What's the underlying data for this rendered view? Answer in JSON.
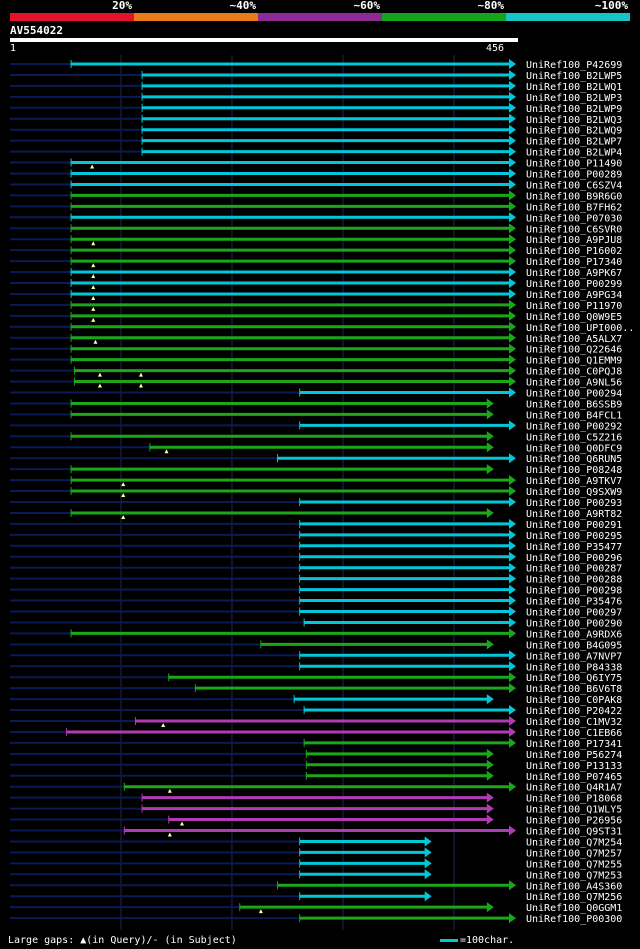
{
  "legend": {
    "segments": [
      {
        "label": "20%",
        "color": "#e6122d"
      },
      {
        "label": "~40%",
        "color": "#e87a1a"
      },
      {
        "label": "~60%",
        "color": "#8e2a96"
      },
      {
        "label": "~80%",
        "color": "#13a51b"
      },
      {
        "label": "~100%",
        "color": "#18c3c8"
      }
    ]
  },
  "query": {
    "name": "AV554022",
    "start": "1",
    "end": "456",
    "length": 456
  },
  "colors": {
    "cyan": "#00c8d8",
    "green": "#1aa81a",
    "purple": "#b03cb4",
    "dim": "#0a1a55",
    "grid": "#1e2850",
    "marker": "#ffffa0"
  },
  "footer": {
    "gaps_note": "Large gaps: ▲(in Query)/- (in Subject)",
    "scale_label": "=100char."
  },
  "hits": [
    {
      "id": "UniRef100_P42699",
      "start": 56,
      "end": 456,
      "color": "cyan"
    },
    {
      "id": "UniRef100_B2LWP5",
      "start": 120,
      "end": 456,
      "color": "cyan"
    },
    {
      "id": "UniRef100_B2LWQ1",
      "start": 120,
      "end": 456,
      "color": "cyan"
    },
    {
      "id": "UniRef100_B2LWP3",
      "start": 120,
      "end": 456,
      "color": "cyan"
    },
    {
      "id": "UniRef100_B2LWP9",
      "start": 120,
      "end": 456,
      "color": "cyan"
    },
    {
      "id": "UniRef100_B2LWQ3",
      "start": 120,
      "end": 456,
      "color": "cyan"
    },
    {
      "id": "UniRef100_B2LWQ9",
      "start": 120,
      "end": 456,
      "color": "cyan"
    },
    {
      "id": "UniRef100_B2LWP7",
      "start": 120,
      "end": 456,
      "color": "cyan"
    },
    {
      "id": "UniRef100_B2LWP4",
      "start": 120,
      "end": 456,
      "color": "cyan"
    },
    {
      "id": "UniRef100_P11490",
      "start": 56,
      "end": 456,
      "color": "cyan",
      "marks": [
        75
      ]
    },
    {
      "id": "UniRef100_P00289",
      "start": 56,
      "end": 456,
      "color": "cyan"
    },
    {
      "id": "UniRef100_C6SZV4",
      "start": 56,
      "end": 456,
      "color": "cyan"
    },
    {
      "id": "UniRef100_B9R6G0",
      "start": 56,
      "end": 456,
      "color": "green"
    },
    {
      "id": "UniRef100_B7FH62",
      "start": 56,
      "end": 456,
      "color": "green"
    },
    {
      "id": "UniRef100_P07030",
      "start": 56,
      "end": 456,
      "color": "cyan"
    },
    {
      "id": "UniRef100_C6SVR0",
      "start": 56,
      "end": 456,
      "color": "green"
    },
    {
      "id": "UniRef100_A9PJU8",
      "start": 56,
      "end": 456,
      "color": "green",
      "marks": [
        76
      ]
    },
    {
      "id": "UniRef100_P16002",
      "start": 56,
      "end": 456,
      "color": "green"
    },
    {
      "id": "UniRef100_P17340",
      "start": 56,
      "end": 456,
      "color": "green",
      "marks": [
        76
      ]
    },
    {
      "id": "UniRef100_A9PK67",
      "start": 56,
      "end": 456,
      "color": "cyan",
      "marks": [
        76
      ]
    },
    {
      "id": "UniRef100_P00299",
      "start": 56,
      "end": 456,
      "color": "cyan",
      "marks": [
        76
      ]
    },
    {
      "id": "UniRef100_A9PG34",
      "start": 56,
      "end": 456,
      "color": "cyan",
      "marks": [
        76
      ]
    },
    {
      "id": "UniRef100_P11970",
      "start": 56,
      "end": 456,
      "color": "green",
      "marks": [
        76
      ]
    },
    {
      "id": "UniRef100_Q0W9E5",
      "start": 56,
      "end": 456,
      "color": "green",
      "marks": [
        76
      ]
    },
    {
      "id": "UniRef100_UPI000..",
      "start": 56,
      "end": 456,
      "color": "green"
    },
    {
      "id": "UniRef100_A5ALX7",
      "start": 56,
      "end": 456,
      "color": "green",
      "marks": [
        78
      ]
    },
    {
      "id": "UniRef100_Q22646",
      "start": 56,
      "end": 456,
      "color": "green"
    },
    {
      "id": "UniRef100_Q1EMM9",
      "start": 56,
      "end": 456,
      "color": "green"
    },
    {
      "id": "UniRef100_C0PQJ8",
      "start": 59,
      "end": 456,
      "color": "green",
      "marks": [
        82,
        119
      ]
    },
    {
      "id": "UniRef100_A9NL56",
      "start": 59,
      "end": 456,
      "color": "green",
      "marks": [
        82,
        119
      ]
    },
    {
      "id": "UniRef100_P00294",
      "start": 262,
      "end": 456,
      "color": "cyan"
    },
    {
      "id": "UniRef100_B6SSB9",
      "start": 56,
      "end": 436,
      "color": "green"
    },
    {
      "id": "UniRef100_B4FCL1",
      "start": 56,
      "end": 436,
      "color": "green"
    },
    {
      "id": "UniRef100_P00292",
      "start": 262,
      "end": 456,
      "color": "cyan"
    },
    {
      "id": "UniRef100_C5Z216",
      "start": 56,
      "end": 436,
      "color": "green"
    },
    {
      "id": "UniRef100_Q0DFC9",
      "start": 127,
      "end": 436,
      "color": "green",
      "marks": [
        142
      ]
    },
    {
      "id": "UniRef100_Q6RUN5",
      "start": 242,
      "end": 456,
      "color": "cyan"
    },
    {
      "id": "UniRef100_P08248",
      "start": 56,
      "end": 436,
      "color": "green"
    },
    {
      "id": "UniRef100_A9TKV7",
      "start": 56,
      "end": 456,
      "color": "green",
      "marks": [
        103
      ]
    },
    {
      "id": "UniRef100_Q9SXW9",
      "start": 56,
      "end": 456,
      "color": "green",
      "marks": [
        103
      ]
    },
    {
      "id": "UniRef100_P00293",
      "start": 262,
      "end": 456,
      "color": "cyan"
    },
    {
      "id": "UniRef100_A9RT82",
      "start": 56,
      "end": 436,
      "color": "green",
      "marks": [
        103
      ]
    },
    {
      "id": "UniRef100_P00291",
      "start": 262,
      "end": 456,
      "color": "cyan"
    },
    {
      "id": "UniRef100_P00295",
      "start": 262,
      "end": 456,
      "color": "cyan"
    },
    {
      "id": "UniRef100_P35477",
      "start": 262,
      "end": 456,
      "color": "cyan"
    },
    {
      "id": "UniRef100_P00296",
      "start": 262,
      "end": 456,
      "color": "cyan"
    },
    {
      "id": "UniRef100_P00287",
      "start": 262,
      "end": 456,
      "color": "cyan"
    },
    {
      "id": "UniRef100_P00288",
      "start": 262,
      "end": 456,
      "color": "cyan"
    },
    {
      "id": "UniRef100_P00298",
      "start": 262,
      "end": 456,
      "color": "cyan"
    },
    {
      "id": "UniRef100_P35476",
      "start": 262,
      "end": 456,
      "color": "cyan"
    },
    {
      "id": "UniRef100_P00297",
      "start": 262,
      "end": 456,
      "color": "cyan"
    },
    {
      "id": "UniRef100_P00290",
      "start": 266,
      "end": 456,
      "color": "cyan"
    },
    {
      "id": "UniRef100_A9RDX6",
      "start": 56,
      "end": 456,
      "color": "green"
    },
    {
      "id": "UniRef100_B4G095",
      "start": 227,
      "end": 436,
      "color": "green"
    },
    {
      "id": "UniRef100_A7NVP7",
      "start": 262,
      "end": 456,
      "color": "cyan"
    },
    {
      "id": "UniRef100_P84338",
      "start": 262,
      "end": 456,
      "color": "cyan"
    },
    {
      "id": "UniRef100_Q6IY75",
      "start": 144,
      "end": 456,
      "color": "green"
    },
    {
      "id": "UniRef100_B6V6T8",
      "start": 168,
      "end": 456,
      "color": "green"
    },
    {
      "id": "UniRef100_C0PAK8",
      "start": 257,
      "end": 436,
      "color": "cyan"
    },
    {
      "id": "UniRef100_P20422",
      "start": 266,
      "end": 456,
      "color": "cyan"
    },
    {
      "id": "UniRef100_C1MV32",
      "start": 114,
      "end": 456,
      "color": "purple",
      "marks": [
        139
      ]
    },
    {
      "id": "UniRef100_C1EB66",
      "start": 52,
      "end": 456,
      "color": "purple"
    },
    {
      "id": "UniRef100_P17341",
      "start": 266,
      "end": 456,
      "color": "green"
    },
    {
      "id": "UniRef100_P56274",
      "start": 268,
      "end": 436,
      "color": "green"
    },
    {
      "id": "UniRef100_P13133",
      "start": 268,
      "end": 436,
      "color": "green"
    },
    {
      "id": "UniRef100_P07465",
      "start": 268,
      "end": 436,
      "color": "green"
    },
    {
      "id": "UniRef100_Q4R1A7",
      "start": 104,
      "end": 456,
      "color": "green",
      "marks": [
        145
      ]
    },
    {
      "id": "UniRef100_P18068",
      "start": 120,
      "end": 436,
      "color": "purple"
    },
    {
      "id": "UniRef100_Q1WLY5",
      "start": 120,
      "end": 436,
      "color": "purple"
    },
    {
      "id": "UniRef100_P26956",
      "start": 144,
      "end": 436,
      "color": "purple",
      "marks": [
        156
      ]
    },
    {
      "id": "UniRef100_Q9ST31",
      "start": 104,
      "end": 456,
      "color": "purple",
      "marks": [
        145
      ]
    },
    {
      "id": "UniRef100_Q7M254",
      "start": 262,
      "end": 380,
      "color": "cyan"
    },
    {
      "id": "UniRef100_Q7M257",
      "start": 262,
      "end": 380,
      "color": "cyan"
    },
    {
      "id": "UniRef100_Q7M255",
      "start": 262,
      "end": 380,
      "color": "cyan"
    },
    {
      "id": "UniRef100_Q7M253",
      "start": 262,
      "end": 380,
      "color": "cyan"
    },
    {
      "id": "UniRef100_A4S360",
      "start": 242,
      "end": 456,
      "color": "green"
    },
    {
      "id": "UniRef100_Q7M256",
      "start": 262,
      "end": 380,
      "color": "cyan"
    },
    {
      "id": "UniRef100_Q0GGM1",
      "start": 208,
      "end": 436,
      "color": "green",
      "marks": [
        227
      ]
    },
    {
      "id": "UniRef100_P00300",
      "start": 262,
      "end": 456,
      "color": "green"
    }
  ]
}
